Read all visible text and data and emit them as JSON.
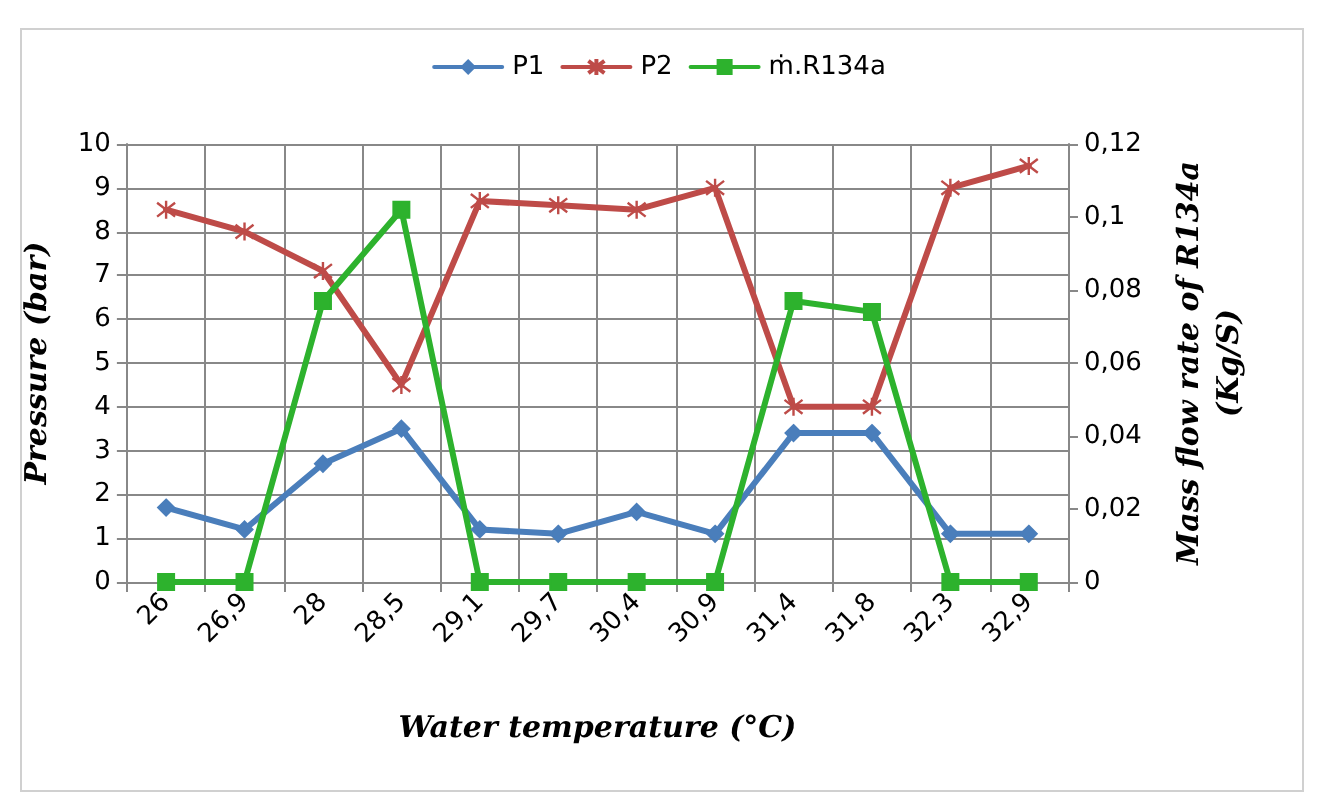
{
  "chart_data": {
    "type": "line",
    "xlabel": "Water temperature (°C)",
    "ylabel": "Pressure (bar)",
    "y2label": "Mass flow rate of R134a (Kg/S)",
    "categories": [
      "26",
      "26,9",
      "28",
      "28,5",
      "29,1",
      "29,7",
      "30,4",
      "30,9",
      "31,4",
      "31,8",
      "32,3",
      "32,9"
    ],
    "series": [
      {
        "name": "P1",
        "color": "#4a7ebb",
        "marker": "diamond",
        "values": [
          1.7,
          1.2,
          2.7,
          3.5,
          1.2,
          1.1,
          1.6,
          1.1,
          3.4,
          3.4,
          1.1,
          1.1
        ]
      },
      {
        "name": "P2",
        "color": "#be4b48",
        "marker": "cross",
        "values": [
          8.5,
          8.0,
          7.1,
          4.5,
          8.7,
          8.6,
          8.5,
          9.0,
          4.0,
          4.0,
          9.0,
          9.5
        ]
      },
      {
        "name": "ṁ.R134a",
        "color": "#2db22d",
        "marker": "square",
        "axis": "y2",
        "values": [
          0,
          0,
          0.077,
          0.102,
          0,
          0,
          0,
          0,
          0.077,
          0.074,
          0,
          0
        ]
      }
    ],
    "ylim": [
      0,
      10
    ],
    "yticks": [
      0,
      1,
      2,
      3,
      4,
      5,
      6,
      7,
      8,
      9,
      10
    ],
    "y2lim": [
      0,
      0.12
    ],
    "y2ticks": [
      {
        "value": 0,
        "label": "0"
      },
      {
        "value": 0.02,
        "label": "0,02"
      },
      {
        "value": 0.04,
        "label": "0,04"
      },
      {
        "value": 0.06,
        "label": "0,06"
      },
      {
        "value": 0.08,
        "label": "0,08"
      },
      {
        "value": 0.1,
        "label": "0,1"
      },
      {
        "value": 0.12,
        "label": "0,12"
      }
    ],
    "grid": true,
    "legend": "top",
    "line_style": "solid"
  }
}
